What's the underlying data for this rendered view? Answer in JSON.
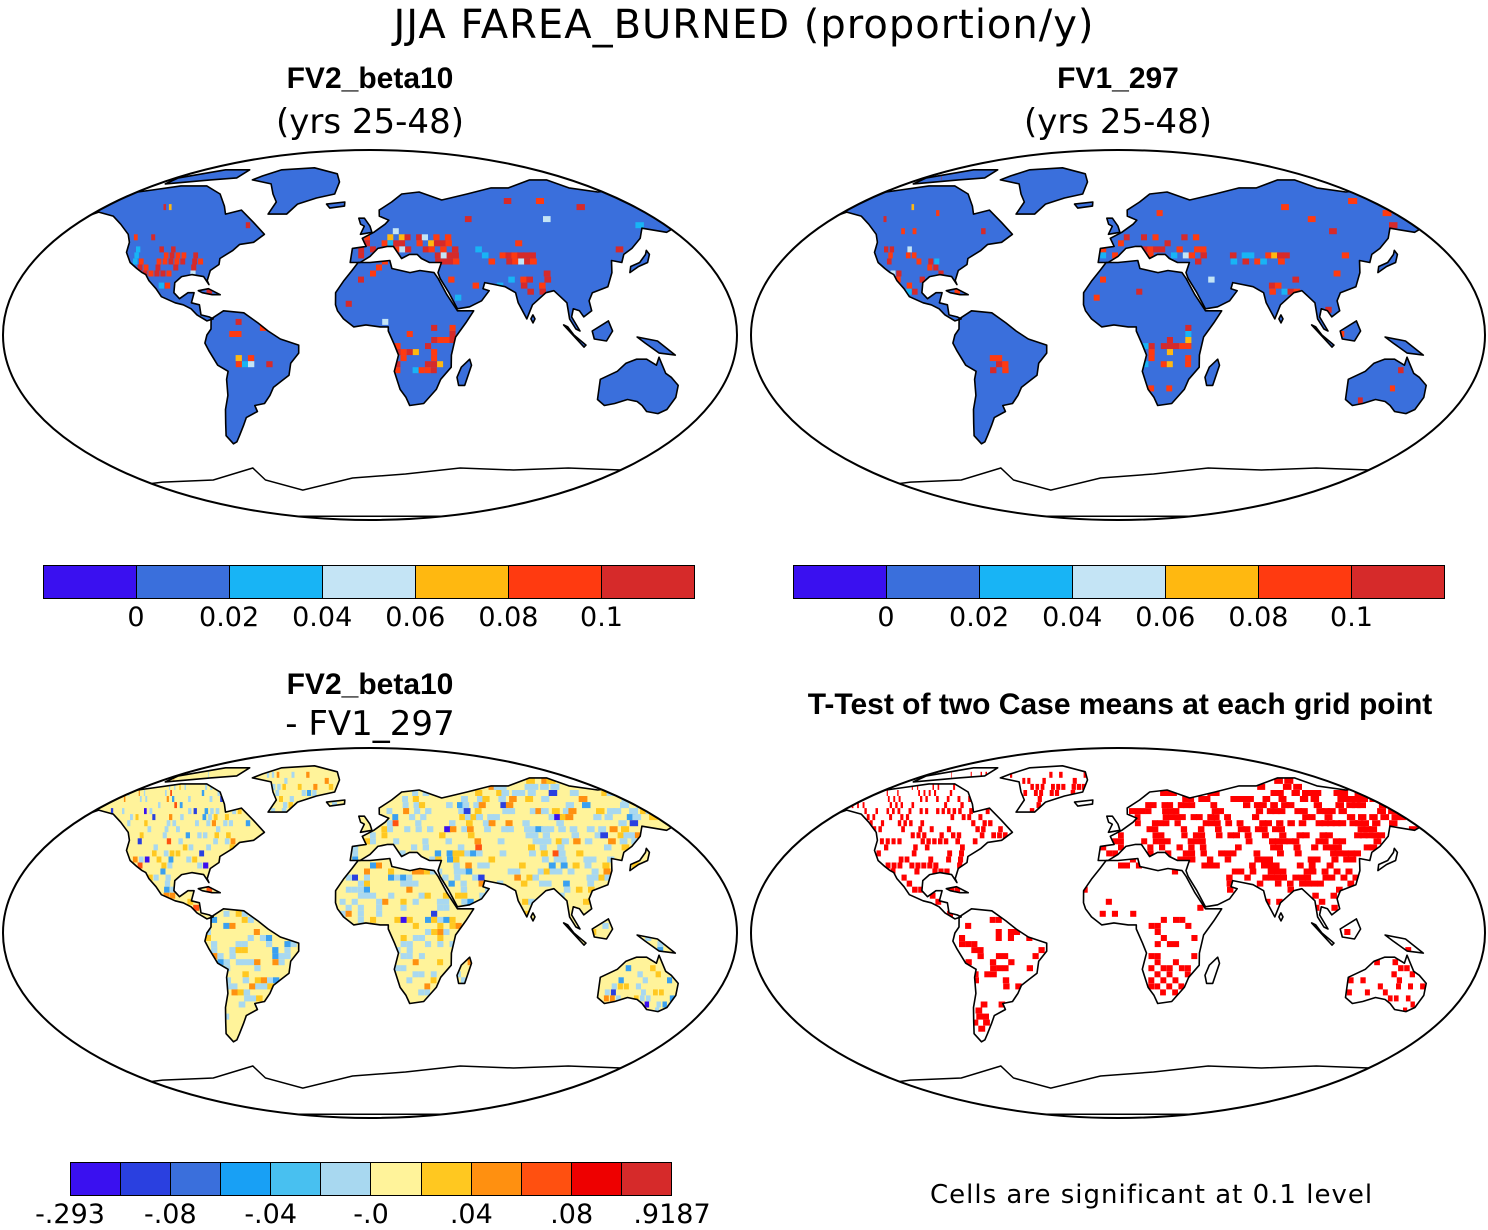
{
  "main_title": "JJA FAREA_BURNED (proportion/y)",
  "colors": {
    "ocean": "#ffffff",
    "coast": "#000000",
    "land_base": "#3a6fdc",
    "diff_base": "#fff39a",
    "signif": "#ff0000"
  },
  "panels": [
    {
      "id": "fv2",
      "title": "FV2_beta10",
      "subtitle": "(yrs 25-48)",
      "base_color": "#3a6fdc",
      "hotspot_colors": [
        "#d62a2a",
        "#ff3a10",
        "#ffb810",
        "#c4e4f5",
        "#18b4f5"
      ]
    },
    {
      "id": "fv1",
      "title": "FV1_297",
      "subtitle": "(yrs 25-48)",
      "base_color": "#3a6fdc",
      "hotspot_colors": [
        "#d62a2a",
        "#ff3a10",
        "#ffb810",
        "#c4e4f5",
        "#18b4f5"
      ]
    },
    {
      "id": "diff",
      "title": "FV2_beta10",
      "subtitle": "- FV1_297",
      "base_color": "#fff39a",
      "hotspot_colors": [
        "#a8d8f0",
        "#ffc820",
        "#ff9010",
        "#3aa0f0",
        "#2a40e0",
        "#3a10f0",
        "#ff5010"
      ]
    },
    {
      "id": "ttest",
      "title": "T-Test of two Case means at each grid point",
      "subtitle": "",
      "base_color": "#ffffff",
      "hotspot_colors": [
        "#ff0000"
      ]
    }
  ],
  "colorbar_top": {
    "colors": [
      "#3a10f0",
      "#3a6fdc",
      "#18b4f5",
      "#c4e4f5",
      "#ffb810",
      "#ff3a10",
      "#d62a2a"
    ],
    "labels": [
      "0",
      "0.02",
      "0.04",
      "0.06",
      "0.08",
      "0.1"
    ]
  },
  "colorbar_diff": {
    "colors": [
      "#3a10f0",
      "#2a40e0",
      "#3a6fdc",
      "#18a0f5",
      "#48c0f0",
      "#a8d8f0",
      "#fff39a",
      "#ffc820",
      "#ff9010",
      "#ff5010",
      "#ee0000",
      "#d62a2a"
    ],
    "labels": [
      "-.293",
      "-.08",
      "-.04",
      "-.0",
      ".04",
      ".08",
      ".9187"
    ]
  },
  "note": "Cells are significant at 0.1 level"
}
